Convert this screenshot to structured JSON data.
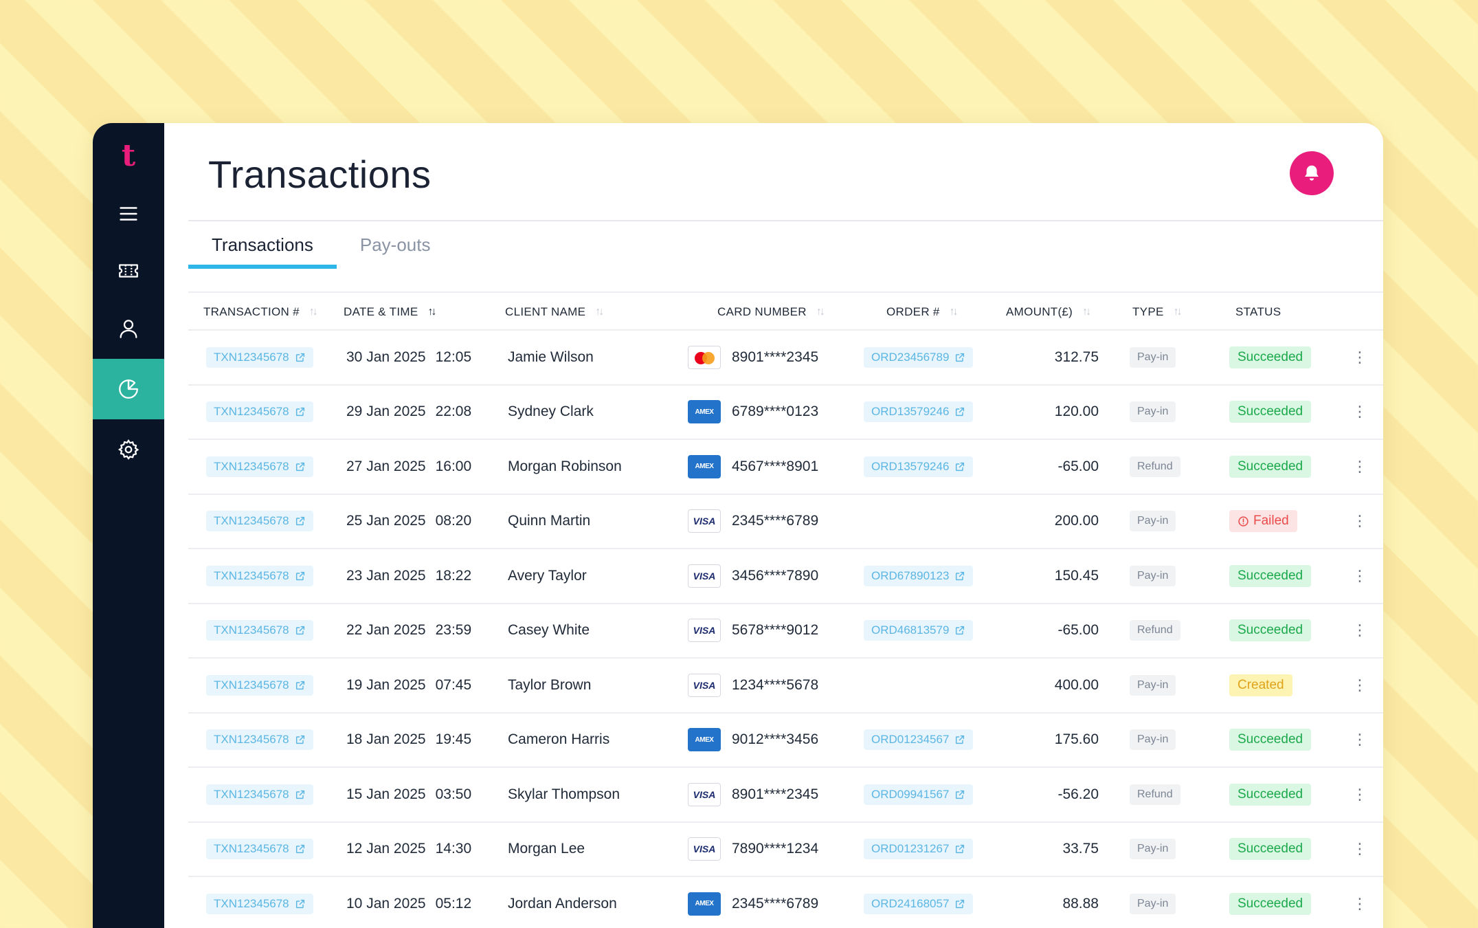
{
  "sidebar": {
    "logo": "t",
    "items": [
      {
        "icon": "menu-icon"
      },
      {
        "icon": "ticket-icon"
      },
      {
        "icon": "user-icon"
      },
      {
        "icon": "pie-chart-icon",
        "active": true
      },
      {
        "icon": "gear-icon"
      }
    ]
  },
  "header": {
    "title": "Transactions",
    "notification_icon": "bell-icon"
  },
  "tabs": [
    {
      "label": "Transactions",
      "active": true
    },
    {
      "label": "Pay-outs",
      "active": false
    }
  ],
  "table": {
    "columns": {
      "transaction": "TRANSACTION #",
      "datetime": "DATE & TIME",
      "client": "CLIENT NAME",
      "card": "CARD NUMBER",
      "order": "ORDER #",
      "amount": "AMOUNT(£)",
      "type": "TYPE",
      "status": "STATUS"
    },
    "sorted_column": "DATE & TIME",
    "rows": [
      {
        "txn": "TXN12345678",
        "date": "30 Jan 2025",
        "time": "12:05",
        "client": "Jamie Wilson",
        "card_brand": "mastercard",
        "card": "8901****2345",
        "order": "ORD23456789",
        "amount": "312.75",
        "type": "Pay-in",
        "status": "Succeeded"
      },
      {
        "txn": "TXN12345678",
        "date": "29 Jan 2025",
        "time": "22:08",
        "client": "Sydney Clark",
        "card_brand": "amex",
        "card": "6789****0123",
        "order": "ORD13579246",
        "amount": "120.00",
        "type": "Pay-in",
        "status": "Succeeded"
      },
      {
        "txn": "TXN12345678",
        "date": "27 Jan 2025",
        "time": "16:00",
        "client": "Morgan Robinson",
        "card_brand": "amex",
        "card": "4567****8901",
        "order": "ORD13579246",
        "amount": "-65.00",
        "type": "Refund",
        "status": "Succeeded"
      },
      {
        "txn": "TXN12345678",
        "date": "25 Jan 2025",
        "time": "08:20",
        "client": "Quinn Martin",
        "card_brand": "visa",
        "card": "2345****6789",
        "order": "",
        "amount": "200.00",
        "type": "Pay-in",
        "status": "Failed"
      },
      {
        "txn": "TXN12345678",
        "date": "23 Jan 2025",
        "time": "18:22",
        "client": "Avery Taylor",
        "card_brand": "visa",
        "card": "3456****7890",
        "order": "ORD67890123",
        "amount": "150.45",
        "type": "Pay-in",
        "status": "Succeeded"
      },
      {
        "txn": "TXN12345678",
        "date": "22 Jan 2025",
        "time": "23:59",
        "client": "Casey White",
        "card_brand": "visa",
        "card": "5678****9012",
        "order": "ORD46813579",
        "amount": "-65.00",
        "type": "Refund",
        "status": "Succeeded"
      },
      {
        "txn": "TXN12345678",
        "date": "19 Jan 2025",
        "time": "07:45",
        "client": "Taylor Brown",
        "card_brand": "visa",
        "card": "1234****5678",
        "order": "",
        "amount": "400.00",
        "type": "Pay-in",
        "status": "Created"
      },
      {
        "txn": "TXN12345678",
        "date": "18 Jan 2025",
        "time": "19:45",
        "client": "Cameron Harris",
        "card_brand": "amex",
        "card": "9012****3456",
        "order": "ORD01234567",
        "amount": "175.60",
        "type": "Pay-in",
        "status": "Succeeded"
      },
      {
        "txn": "TXN12345678",
        "date": "15 Jan 2025",
        "time": "03:50",
        "client": "Skylar Thompson",
        "card_brand": "visa",
        "card": "8901****2345",
        "order": "ORD09941567",
        "amount": "-56.20",
        "type": "Refund",
        "status": "Succeeded"
      },
      {
        "txn": "TXN12345678",
        "date": "12 Jan 2025",
        "time": "14:30",
        "client": "Morgan Lee",
        "card_brand": "visa",
        "card": "7890****1234",
        "order": "ORD01231267",
        "amount": "33.75",
        "type": "Pay-in",
        "status": "Succeeded"
      },
      {
        "txn": "TXN12345678",
        "date": "10 Jan 2025",
        "time": "05:12",
        "client": "Jordan Anderson",
        "card_brand": "amex",
        "card": "2345****6789",
        "order": "ORD24168057",
        "amount": "88.88",
        "type": "Pay-in",
        "status": "Succeeded"
      }
    ]
  },
  "card_labels": {
    "visa": "VISA",
    "amex": "AMEX"
  },
  "colors": {
    "accent": "#e91e7c",
    "sidebar": "#0a1427",
    "active_nav": "#2bb3a0",
    "tab_underline": "#2fb5e8"
  }
}
